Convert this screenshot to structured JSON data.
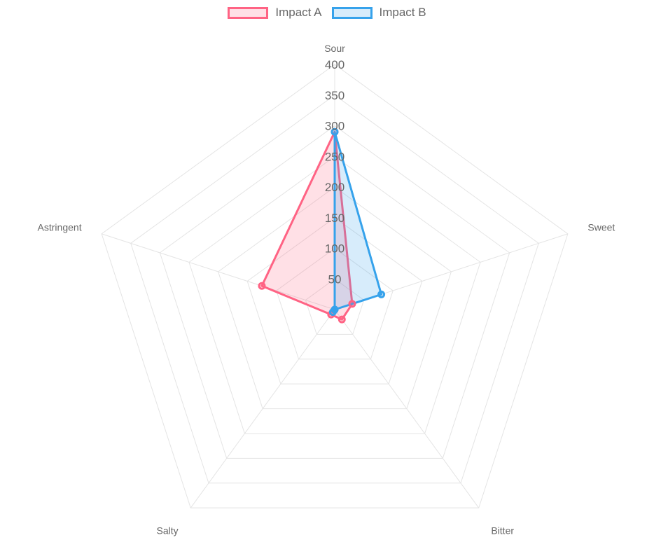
{
  "chart_data": {
    "type": "radar",
    "categories": [
      "Sour",
      "Sweet",
      "Bitter",
      "Salty",
      "Astringent"
    ],
    "series": [
      {
        "name": "Impact A",
        "values": [
          290,
          30,
          20,
          10,
          125
        ],
        "color": "#ff6384",
        "fill": "rgba(255, 99, 132, 0.2)"
      },
      {
        "name": "Impact B",
        "values": [
          290,
          80,
          0,
          5,
          0
        ],
        "color": "#36a2eb",
        "fill": "rgba(54, 162, 235, 0.2)"
      }
    ],
    "r_ticks": [
      "50",
      "100",
      "150",
      "200",
      "250",
      "300",
      "350",
      "400"
    ],
    "r_range": [
      0,
      400
    ],
    "grid": true,
    "legend_position": "top",
    "grid_color": "#e4e4e4",
    "label_color": "#666666"
  }
}
